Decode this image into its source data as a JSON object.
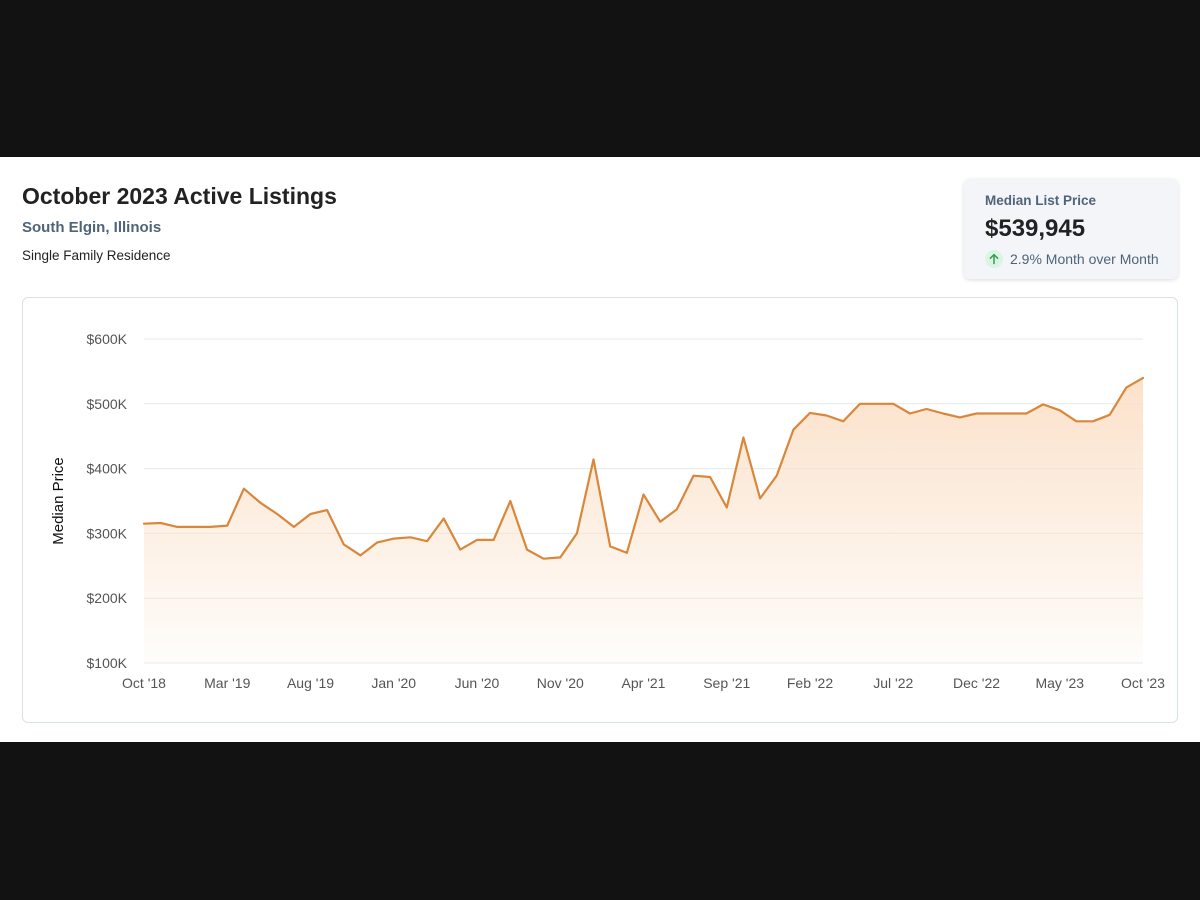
{
  "header": {
    "title": "October 2023 Active Listings",
    "location": "South Elgin, Illinois",
    "property_type": "Single Family Residence"
  },
  "stat_card": {
    "label": "Median List Price",
    "value": "$539,945",
    "change": "2.9% Month over Month",
    "icon": "arrow-up-icon",
    "icon_color": "#2e9e55"
  },
  "colors": {
    "line": "#d9873a",
    "fill_top": "#fbe3cf",
    "grid": "#e4eaee"
  },
  "chart_data": {
    "type": "area",
    "title": "",
    "xlabel": "",
    "ylabel": "Median Price",
    "ylim": [
      100000,
      600000
    ],
    "yticks": [
      100000,
      200000,
      300000,
      400000,
      500000,
      600000
    ],
    "ytick_labels": [
      "$100K",
      "$200K",
      "$300K",
      "$400K",
      "$500K",
      "$600K"
    ],
    "xtick_labels": [
      "Oct '18",
      "Mar '19",
      "Aug '19",
      "Jan '20",
      "Jun '20",
      "Nov '20",
      "Apr '21",
      "Sep '21",
      "Feb '22",
      "Jul '22",
      "Dec '22",
      "May '23",
      "Oct '23"
    ],
    "xtick_months": [
      "2018-10",
      "2019-03",
      "2019-08",
      "2020-01",
      "2020-06",
      "2020-11",
      "2021-04",
      "2021-09",
      "2022-02",
      "2022-07",
      "2022-12",
      "2023-05",
      "2023-10"
    ],
    "grid": true,
    "legend": "none",
    "series": [
      {
        "months": [
          "2018-10",
          "2018-11",
          "2018-12",
          "2019-01",
          "2019-02",
          "2019-03",
          "2019-04",
          "2019-05",
          "2019-06",
          "2019-07",
          "2019-08",
          "2019-09",
          "2019-10",
          "2019-11",
          "2019-12",
          "2020-01",
          "2020-02",
          "2020-03",
          "2020-04",
          "2020-05",
          "2020-06",
          "2020-07",
          "2020-08",
          "2020-09",
          "2020-10",
          "2020-11",
          "2020-12",
          "2021-01",
          "2021-02",
          "2021-03",
          "2021-04",
          "2021-05",
          "2021-06",
          "2021-07",
          "2021-08",
          "2021-09",
          "2021-10",
          "2021-11",
          "2021-12",
          "2022-01",
          "2022-02",
          "2022-03",
          "2022-04",
          "2022-05",
          "2022-06",
          "2022-07",
          "2022-08",
          "2022-09",
          "2022-10",
          "2022-11",
          "2022-12",
          "2023-01",
          "2023-02",
          "2023-03",
          "2023-04",
          "2023-05",
          "2023-06",
          "2023-07",
          "2023-08",
          "2023-09",
          "2023-10"
        ],
        "values": [
          315000,
          316000,
          310000,
          310000,
          310000,
          312000,
          369000,
          347000,
          330000,
          310000,
          330000,
          336000,
          283000,
          266000,
          286000,
          292000,
          294000,
          288000,
          323000,
          275000,
          290000,
          290000,
          350000,
          275000,
          261000,
          263000,
          300000,
          414000,
          280000,
          270000,
          360000,
          318000,
          337000,
          389000,
          387000,
          340000,
          448000,
          354000,
          389000,
          460000,
          486000,
          482000,
          473000,
          500000,
          500000,
          500000,
          485000,
          492000,
          485000,
          479000,
          485000,
          485000,
          485000,
          485000,
          499000,
          490000,
          473000,
          473000,
          483000,
          525000,
          539945
        ]
      }
    ]
  }
}
